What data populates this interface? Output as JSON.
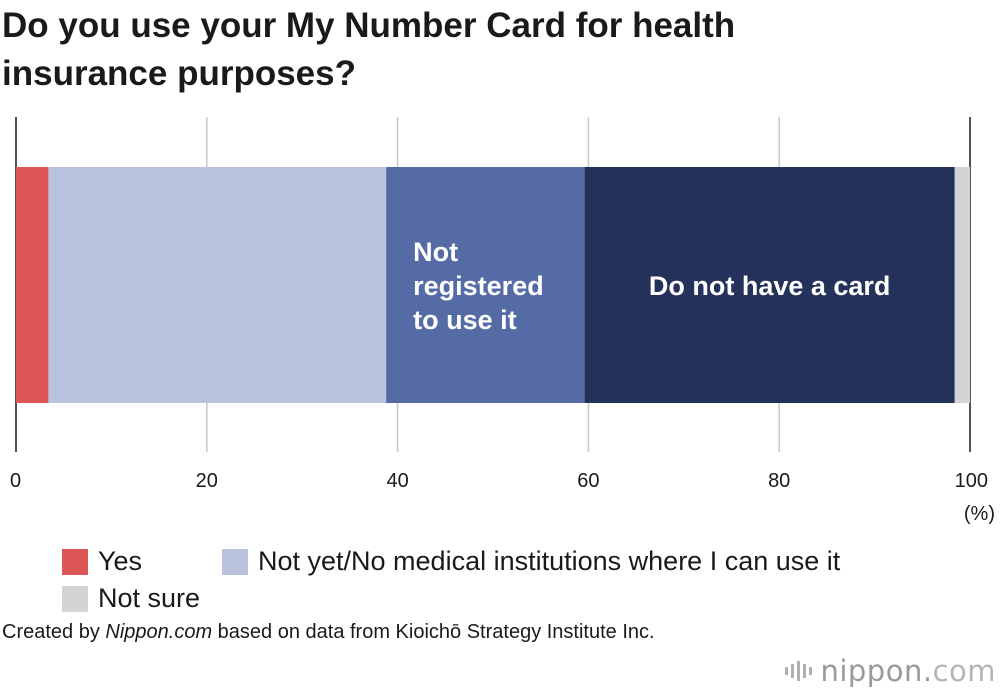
{
  "title": "Do you use your My Number Card for health insurance purposes?",
  "chart_data": {
    "type": "bar",
    "orientation": "horizontal-stacked",
    "xlim": [
      0,
      100
    ],
    "x_ticks": [
      "0",
      "20",
      "40",
      "60",
      "80",
      "100"
    ],
    "unit_label": "(%)",
    "grid": true,
    "series": [
      {
        "name": "Yes",
        "value": 3.4,
        "color": "#dd5656"
      },
      {
        "name": "Not yet/No medical institutions where I can use it",
        "value": 35.4,
        "color": "#bac3dd"
      },
      {
        "name": "Not registered to use it",
        "value": 20.8,
        "color": "#556ba6",
        "label_lines": [
          "Not",
          "registered",
          "to use it"
        ]
      },
      {
        "name": "Do not have a card",
        "value": 38.8,
        "color": "#24325b",
        "label_lines": [
          "Do not have a card"
        ]
      },
      {
        "name": "Not sure",
        "value": 1.6,
        "color": "#d4d4d4"
      }
    ],
    "legend": [
      {
        "label": "Yes",
        "color": "#dd5656"
      },
      {
        "label": "Not yet/No medical institutions where I can use it",
        "color": "#bac3dd"
      },
      {
        "label": "Not sure",
        "color": "#d4d4d4"
      }
    ],
    "legend_position": "bottom"
  },
  "source": {
    "prefix": "Created by ",
    "site": "Nippon.com",
    "suffix": " based on data from Kioichō Strategy Institute Inc."
  },
  "logo": {
    "name": "nippon",
    "dot": ".",
    "tld": "com"
  }
}
